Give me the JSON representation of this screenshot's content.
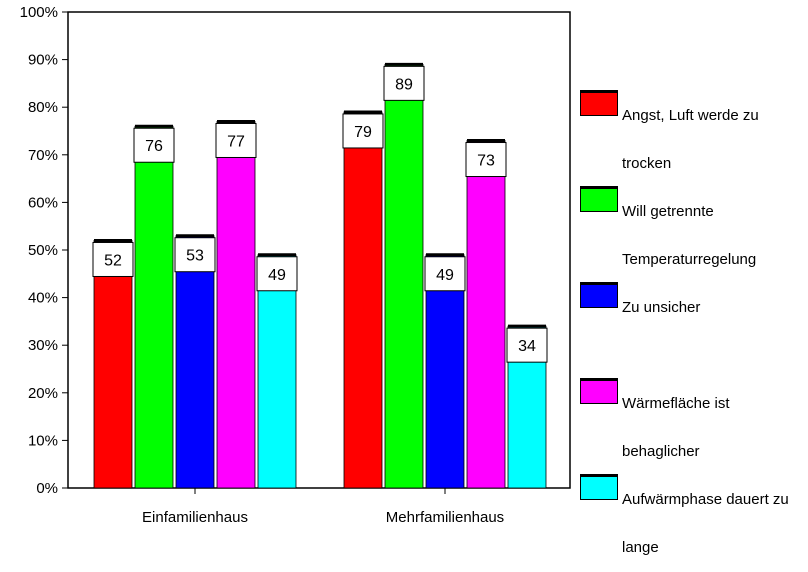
{
  "chart_data": {
    "type": "bar",
    "categories": [
      "Einfamilienhaus",
      "Mehrfamilienhaus"
    ],
    "series": [
      {
        "name": "Angst, Luft werde zu trocken",
        "values": [
          52,
          79
        ],
        "color": "#ff0000"
      },
      {
        "name": "Will getrennte Temperaturregelung",
        "values": [
          76,
          89
        ],
        "color": "#00ff00"
      },
      {
        "name": "Zu unsicher",
        "values": [
          53,
          49
        ],
        "color": "#0000ff"
      },
      {
        "name": "Wärmefläche ist behaglicher",
        "values": [
          77,
          73
        ],
        "color": "#ff00ff"
      },
      {
        "name": "Aufwärmphase dauert zu lange",
        "values": [
          49,
          34
        ],
        "color": "#00ffff"
      }
    ],
    "data_labels": [
      [
        "52",
        "76",
        "53",
        "77",
        "49"
      ],
      [
        "79",
        "89",
        "49",
        "73",
        "34"
      ]
    ],
    "yticks": [
      "0%",
      "10%",
      "20%",
      "30%",
      "40%",
      "50%",
      "60%",
      "70%",
      "80%",
      "90%",
      "100%"
    ],
    "ylim": [
      0,
      100
    ],
    "title": "",
    "xlabel": "",
    "ylabel": "",
    "grid": false,
    "legend_position": "right",
    "label_box_color": "#ffffff"
  }
}
